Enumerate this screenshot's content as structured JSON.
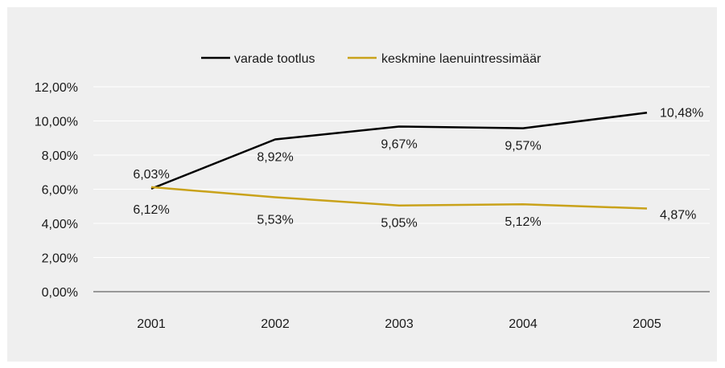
{
  "chart_data": {
    "type": "line",
    "categories": [
      "2001",
      "2002",
      "2003",
      "2004",
      "2005"
    ],
    "series": [
      {
        "name": "varade tootlus",
        "color": "#000000",
        "values": [
          6.03,
          8.92,
          9.67,
          9.57,
          10.48
        ],
        "labels": [
          "6,03%",
          "8,92%",
          "9,67%",
          "9,57%",
          "10,48%"
        ]
      },
      {
        "name": "keskmine laenuintressimäär",
        "color": "#c9a21a",
        "values": [
          6.12,
          5.53,
          5.05,
          5.12,
          4.87
        ],
        "labels": [
          "6,12%",
          "5,53%",
          "5,05%",
          "5,12%",
          "4,87%"
        ]
      }
    ],
    "y_ticks": [
      "0,00%",
      "2,00%",
      "4,00%",
      "6,00%",
      "8,00%",
      "10,00%",
      "12,00%"
    ],
    "ylim": [
      0,
      12
    ],
    "grid": true,
    "legend_position": "top-center",
    "background": "#efefef",
    "gridline_color": "#ffffff",
    "axis_color": "#404040"
  }
}
